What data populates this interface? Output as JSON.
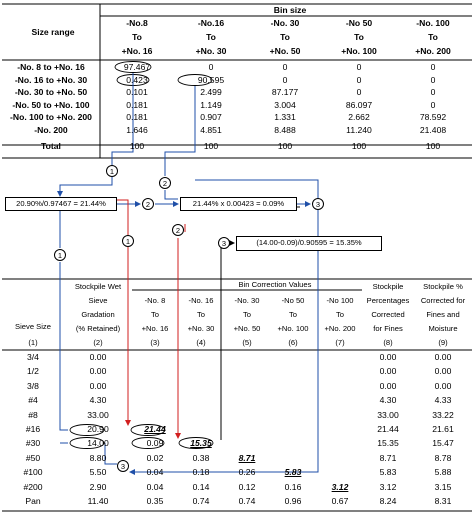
{
  "top": {
    "corner": "Size range",
    "bin_header": "Bin size",
    "columns": [
      [
        "-No.8",
        "To",
        "+No. 16"
      ],
      [
        "-No.16",
        "To",
        "+No. 30"
      ],
      [
        "-No. 30",
        "To",
        "+No. 50"
      ],
      [
        "-No 50",
        "To",
        "+No. 100"
      ],
      [
        "-No. 100",
        "To",
        "+No. 200"
      ]
    ],
    "rows": [
      {
        "label": "-No. 8 to +No. 16",
        "v": [
          "97.467",
          "0",
          "0",
          "0",
          "0"
        ]
      },
      {
        "label": "-No. 16 to +No. 30",
        "v": [
          "0.423",
          "90.595",
          "0",
          "0",
          "0"
        ]
      },
      {
        "label": "-No. 30 to +No. 50",
        "v": [
          "0.101",
          "2.499",
          "87.177",
          "0",
          "0"
        ]
      },
      {
        "label": "-No. 50 to +No. 100",
        "v": [
          "0.181",
          "1.149",
          "3.004",
          "86.097",
          "0"
        ]
      },
      {
        "label": "-No. 100 to +No. 200",
        "v": [
          "0.181",
          "0.907",
          "1.331",
          "2.662",
          "78.592"
        ]
      },
      {
        "label": "-No. 200",
        "v": [
          "1.646",
          "4.851",
          "8.488",
          "11.240",
          "21.408"
        ]
      },
      {
        "label": "Total",
        "v": [
          "100",
          "100",
          "100",
          "100",
          "100"
        ]
      }
    ]
  },
  "calc": {
    "box1": "20.90%/0.97467 = 21.44%",
    "box2": "21.44% x 0.00423 = 0.09%",
    "box3": "(14.00-0.09)/0.90595 = 15.35%",
    "n1": "1",
    "n2": "2",
    "n3": "3"
  },
  "bottom": {
    "group_header": "Bin Correction Values",
    "col1": [
      "Sieve Size",
      "(1)"
    ],
    "col2": [
      "Stockpile Wet",
      "Sieve",
      "Gradation",
      "(% Retained)",
      "(2)"
    ],
    "col3": [
      "-No. 8",
      "To",
      "+No. 16",
      "(3)"
    ],
    "col4": [
      "-No. 16",
      "To",
      "+No. 30",
      "(4)"
    ],
    "col5": [
      "-No. 30",
      "To",
      "+No. 50",
      "(5)"
    ],
    "col6": [
      "-No 50",
      "To",
      "+No. 100",
      "(6)"
    ],
    "col7": [
      "-No 100",
      "To",
      "+No. 200",
      "(7)"
    ],
    "col8": [
      "Stockpile",
      "Percentages",
      "Corrected",
      "for Fines",
      "(8)"
    ],
    "col9": [
      "Stockpile %",
      "Corrected for",
      "Fines and",
      "Moisture",
      "(9)"
    ],
    "rows": [
      [
        "3/4",
        "0.00",
        "",
        "",
        "",
        "",
        "",
        "0.00",
        "0.00"
      ],
      [
        "1/2",
        "0.00",
        "",
        "",
        "",
        "",
        "",
        "0.00",
        "0.00"
      ],
      [
        "3/8",
        "0.00",
        "",
        "",
        "",
        "",
        "",
        "0.00",
        "0.00"
      ],
      [
        "#4",
        "4.30",
        "",
        "",
        "",
        "",
        "",
        "4.30",
        "4.33"
      ],
      [
        "#8",
        "33.00",
        "",
        "",
        "",
        "",
        "",
        "33.00",
        "33.22"
      ],
      [
        "#16",
        "20.90",
        "21.44",
        "",
        "",
        "",
        "",
        "21.44",
        "21.61"
      ],
      [
        "#30",
        "14.00",
        "0.09",
        "15.35",
        "",
        "",
        "",
        "15.35",
        "15.47"
      ],
      [
        "#50",
        "8.80",
        "0.02",
        "0.38",
        "8.71",
        "",
        "",
        "8.71",
        "8.78"
      ],
      [
        "#100",
        "5.50",
        "0.04",
        "0.18",
        "0.26",
        "5.83",
        "",
        "5.83",
        "5.88"
      ],
      [
        "#200",
        "2.90",
        "0.04",
        "0.14",
        "0.12",
        "0.16",
        "3.12",
        "3.12",
        "3.15"
      ],
      [
        "Pan",
        "11.40",
        "0.35",
        "0.74",
        "0.74",
        "0.96",
        "0.67",
        "8.24",
        "8.31"
      ]
    ]
  }
}
